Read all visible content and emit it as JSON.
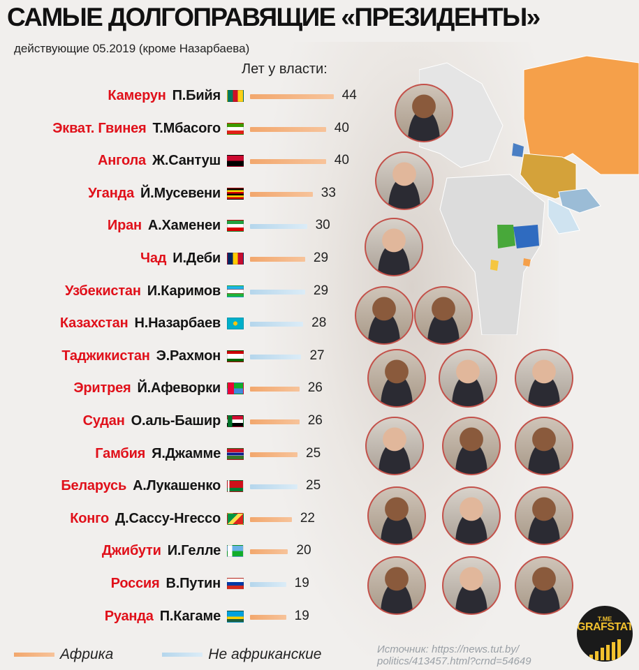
{
  "title": "САМЫЕ ДОЛГОПРАВЯЩИЕ «ПРЕЗИДЕНТЫ»",
  "subtitle": "действующие 05.2019 (кроме Назарбаева)",
  "years_header": "Лет у власти:",
  "colors": {
    "africa": "#f2a76d",
    "non_africa": "#b5d6ec",
    "country_label": "#e0101a"
  },
  "chart_data": {
    "type": "bar",
    "orientation": "horizontal",
    "title": "САМЫЕ ДОЛГОПРАВЯЩИЕ «ПРЕЗИДЕНТЫ»",
    "value_label": "Лет у власти:",
    "rows": [
      {
        "country": "Камерун",
        "leader": "П.Бийя",
        "value": 44,
        "group": "africa",
        "flag": "cameroon-flag-icon"
      },
      {
        "country": "Экват. Гвинея",
        "leader": "Т.Мбасого",
        "value": 40,
        "group": "africa",
        "flag": "equatorial-guinea-flag-icon"
      },
      {
        "country": "Ангола",
        "leader": "Ж.Сантуш",
        "value": 40,
        "group": "africa",
        "flag": "angola-flag-icon"
      },
      {
        "country": "Уганда",
        "leader": "Й.Мусевени",
        "value": 33,
        "group": "africa",
        "flag": "uganda-flag-icon"
      },
      {
        "country": "Иран",
        "leader": "А.Хаменеи",
        "value": 30,
        "group": "other",
        "flag": "iran-flag-icon"
      },
      {
        "country": "Чад",
        "leader": "И.Деби",
        "value": 29,
        "group": "africa",
        "flag": "chad-flag-icon"
      },
      {
        "country": "Узбекистан",
        "leader": "И.Каримов",
        "value": 29,
        "group": "other",
        "flag": "uzbekistan-flag-icon"
      },
      {
        "country": "Казахстан",
        "leader": "Н.Назарбаев",
        "value": 28,
        "group": "other",
        "flag": "kazakhstan-flag-icon"
      },
      {
        "country": "Таджикистан",
        "leader": "Э.Рахмон",
        "value": 27,
        "group": "other",
        "flag": "tajikistan-flag-icon"
      },
      {
        "country": "Эритрея",
        "leader": "Й.Афеворки",
        "value": 26,
        "group": "africa",
        "flag": "eritrea-flag-icon"
      },
      {
        "country": "Судан",
        "leader": "О.аль-Башир",
        "value": 26,
        "group": "africa",
        "flag": "sudan-flag-icon"
      },
      {
        "country": "Гамбия",
        "leader": "Я.Джамме",
        "value": 25,
        "group": "africa",
        "flag": "gambia-flag-icon"
      },
      {
        "country": "Беларусь",
        "leader": "А.Лукашенко",
        "value": 25,
        "group": "other",
        "flag": "belarus-flag-icon"
      },
      {
        "country": "Конго",
        "leader": "Д.Сассу-Нгессо",
        "value": 22,
        "group": "africa",
        "flag": "congo-flag-icon"
      },
      {
        "country": "Джибути",
        "leader": "И.Гелле",
        "value": 20,
        "group": "africa",
        "flag": "djibouti-flag-icon"
      },
      {
        "country": "Россия",
        "leader": "В.Путин",
        "value": 19,
        "group": "other",
        "flag": "russia-flag-icon"
      },
      {
        "country": "Руанда",
        "leader": "П.Кагаме",
        "value": 19,
        "group": "africa",
        "flag": "rwanda-flag-icon"
      }
    ],
    "legend": [
      {
        "label": "Африка",
        "group": "africa"
      },
      {
        "label": "Не африканские",
        "group": "other"
      }
    ],
    "legend_position": "bottom-left"
  },
  "source": {
    "line1": "Источник: https://news.tut.by/",
    "line2": "politics/413457.html?crnd=54649"
  },
  "logo": {
    "top": "T.ME",
    "text": "GRAFSTAT",
    "icon": "bar-chart-logo-icon"
  },
  "portraits_icon": "leader-portrait-icon"
}
